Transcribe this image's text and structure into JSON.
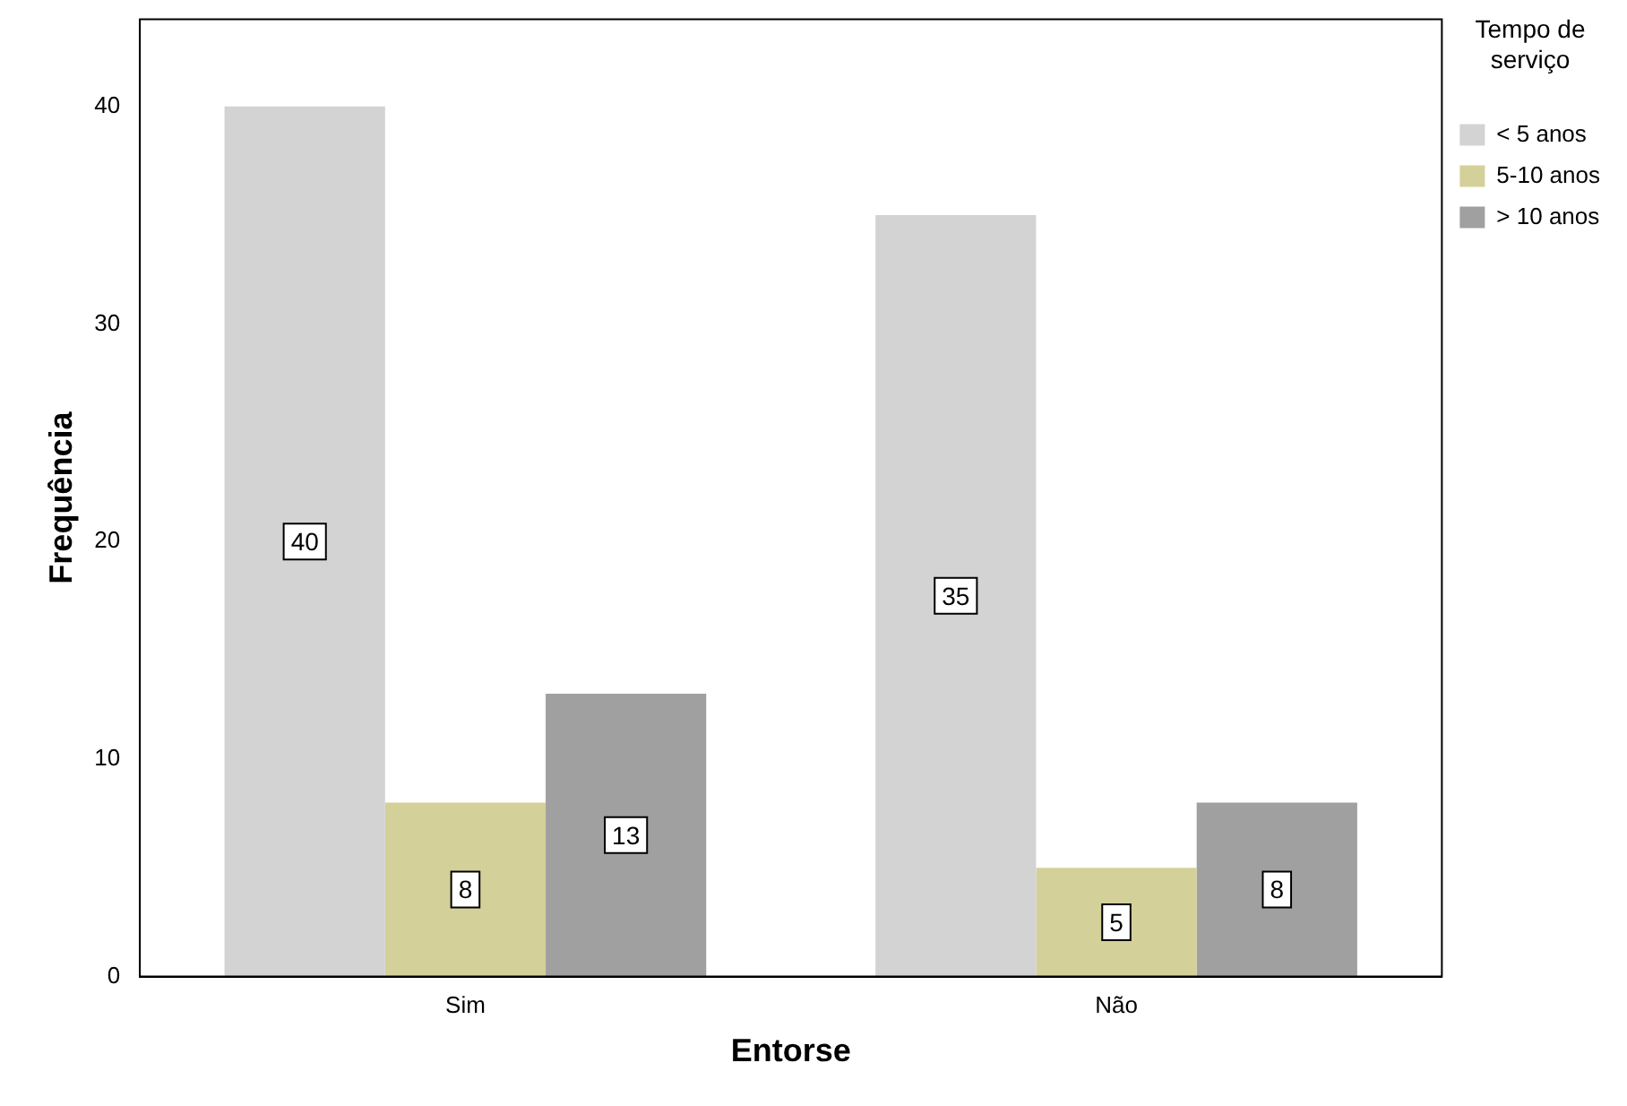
{
  "chart_data": {
    "type": "bar",
    "xlabel": "Entorse",
    "ylabel": "Frequência",
    "legend_title": "Tempo de serviço",
    "categories": [
      "Sim",
      "Não"
    ],
    "series": [
      {
        "name": "< 5 anos",
        "color": "#d3d3d3",
        "values": [
          40,
          35
        ]
      },
      {
        "name": "5-10 anos",
        "color": "#d4d09a",
        "values": [
          8,
          5
        ]
      },
      {
        "name": "> 10 anos",
        "color": "#a0a0a0",
        "values": [
          13,
          8
        ]
      }
    ],
    "ylim": [
      0,
      44
    ],
    "yticks": [
      0,
      10,
      20,
      30,
      40
    ],
    "grid": false,
    "legend": "top right",
    "data_labels": true
  }
}
